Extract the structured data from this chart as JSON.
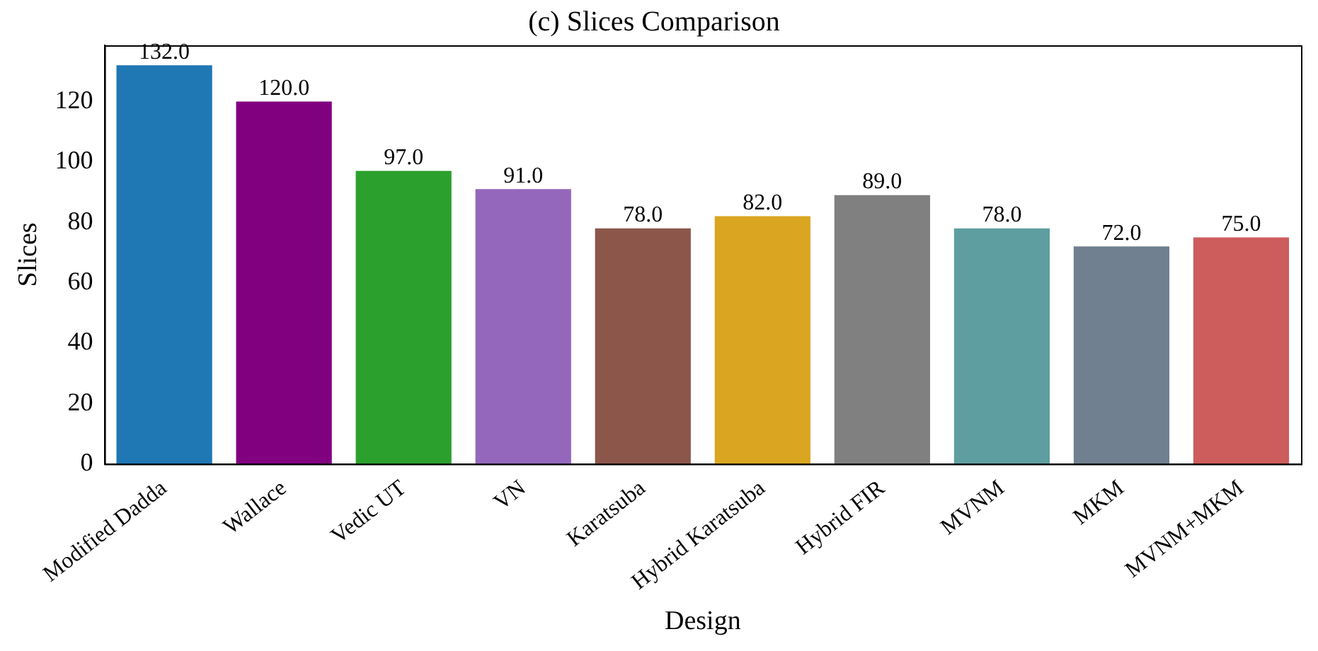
{
  "chart_data": {
    "type": "bar",
    "title": "(c) Slices Comparison",
    "xlabel": "Design",
    "ylabel": "Slices",
    "categories": [
      "Modified Dadda",
      "Wallace",
      "Vedic UT",
      "VN",
      "Karatsuba",
      "Hybrid Karatsuba",
      "Hybrid FIR",
      "MVNM",
      "MKM",
      "MVNM+MKM"
    ],
    "values": [
      132,
      120,
      97,
      91,
      78,
      82,
      89,
      78,
      72,
      75
    ],
    "value_labels": [
      "132.0",
      "120.0",
      "97.0",
      "91.0",
      "78.0",
      "82.0",
      "89.0",
      "78.0",
      "72.0",
      "75.0"
    ],
    "colors": [
      "#1f77b4",
      "#800080",
      "#2ca02c",
      "#9467bd",
      "#8c564b",
      "#daa520",
      "#808080",
      "#5f9ea0",
      "#708090",
      "#cd5c5c"
    ],
    "ylim": [
      0,
      138.6
    ],
    "yticks": [
      0,
      20,
      40,
      60,
      80,
      100,
      120
    ],
    "grid": false,
    "legend": false
  }
}
